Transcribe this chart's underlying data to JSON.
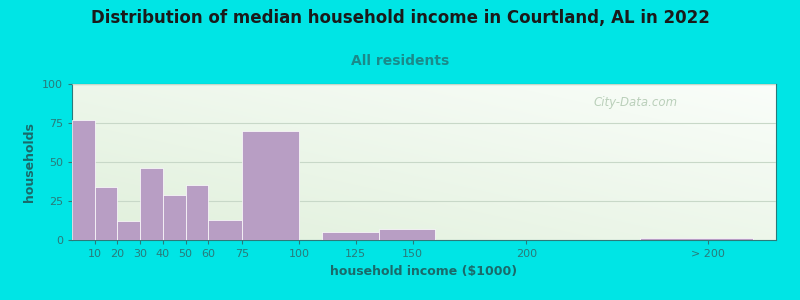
{
  "title": "Distribution of median household income in Courtland, AL in 2022",
  "subtitle": "All residents",
  "xlabel": "household income ($1000)",
  "ylabel": "households",
  "bar_color": "#b89ec4",
  "bar_edgecolor": "#ffffff",
  "background_outer": "#00e5e5",
  "ylim": [
    0,
    100
  ],
  "yticks": [
    0,
    25,
    50,
    75,
    100
  ],
  "values": [
    77,
    34,
    12,
    46,
    29,
    35,
    13,
    70,
    5,
    7,
    0,
    1
  ],
  "bar_widths": [
    10,
    10,
    10,
    10,
    10,
    10,
    15,
    25,
    25,
    25,
    50,
    50
  ],
  "bar_lefts": [
    0,
    10,
    20,
    30,
    40,
    50,
    60,
    75,
    110,
    135,
    170,
    250
  ],
  "xtick_positions": [
    10,
    20,
    30,
    40,
    50,
    60,
    75,
    100,
    125,
    150,
    200,
    280
  ],
  "xtick_labels": [
    "10",
    "20",
    "30",
    "40",
    "50",
    "60",
    "75",
    "100",
    "125",
    "150",
    "200",
    "> 200"
  ],
  "xlim": [
    0,
    310
  ],
  "watermark": "City-Data.com",
  "title_fontsize": 12,
  "subtitle_fontsize": 10,
  "axis_label_fontsize": 9,
  "tick_fontsize": 8,
  "title_color": "#1a1a1a",
  "subtitle_color": "#1a8a8a",
  "axis_label_color": "#1a6a6a",
  "tick_color": "#2a7a7a",
  "spine_color": "#2a7a7a",
  "grid_color": "#c8d8c8",
  "watermark_color": "#b0c8b0"
}
